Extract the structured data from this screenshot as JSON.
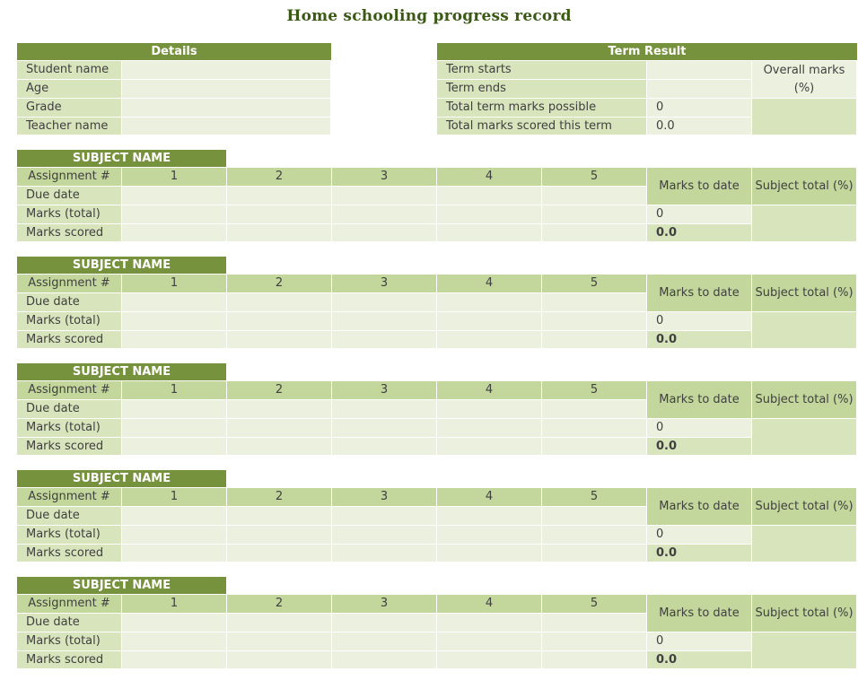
{
  "title": "Home schooling progress record",
  "details": {
    "header": "Details",
    "rows": [
      "Student name",
      "Age",
      "Grade",
      "Teacher name"
    ]
  },
  "term": {
    "header": "Term Result",
    "rows": [
      {
        "label": "Term starts",
        "value": ""
      },
      {
        "label": "Term ends",
        "value": ""
      },
      {
        "label": "Total term marks possible",
        "value": "0"
      },
      {
        "label": "Total marks scored this term",
        "value": "0.0"
      }
    ],
    "overall_label": "Overall marks (%)"
  },
  "subjects": [
    {
      "name": "SUBJECT  NAME",
      "row_labels": [
        "Assignment #",
        "Due date",
        "Marks (total)",
        "Marks scored"
      ],
      "assignments": [
        "1",
        "2",
        "3",
        "4",
        "5"
      ],
      "marks_to_date_label": "Marks to date",
      "subject_total_label": "Subject total (%)",
      "marks_total_value": "0",
      "marks_scored_value": "0.0"
    },
    {
      "name": "SUBJECT  NAME",
      "row_labels": [
        "Assignment #",
        "Due date",
        "Marks (total)",
        "Marks scored"
      ],
      "assignments": [
        "1",
        "2",
        "3",
        "4",
        "5"
      ],
      "marks_to_date_label": "Marks to date",
      "subject_total_label": "Subject total (%)",
      "marks_total_value": "0",
      "marks_scored_value": "0.0"
    },
    {
      "name": "SUBJECT  NAME",
      "row_labels": [
        "Assignment #",
        "Due date",
        "Marks (total)",
        "Marks scored"
      ],
      "assignments": [
        "1",
        "2",
        "3",
        "4",
        "5"
      ],
      "marks_to_date_label": "Marks to date",
      "subject_total_label": "Subject total (%)",
      "marks_total_value": "0",
      "marks_scored_value": "0.0"
    },
    {
      "name": "SUBJECT  NAME",
      "row_labels": [
        "Assignment #",
        "Due date",
        "Marks (total)",
        "Marks scored"
      ],
      "assignments": [
        "1",
        "2",
        "3",
        "4",
        "5"
      ],
      "marks_to_date_label": "Marks to date",
      "subject_total_label": "Subject total (%)",
      "marks_total_value": "0",
      "marks_scored_value": "0.0"
    },
    {
      "name": "SUBJECT  NAME",
      "row_labels": [
        "Assignment #",
        "Due date",
        "Marks (total)",
        "Marks scored"
      ],
      "assignments": [
        "1",
        "2",
        "3",
        "4",
        "5"
      ],
      "marks_to_date_label": "Marks to date",
      "subject_total_label": "Subject total (%)",
      "marks_total_value": "0",
      "marks_scored_value": "0.0"
    }
  ],
  "colors": {
    "header": "#76923c",
    "light": "#ebf1de",
    "medium": "#d7e4bc",
    "dark": "#c3d69b",
    "title": "#3a5a14"
  }
}
